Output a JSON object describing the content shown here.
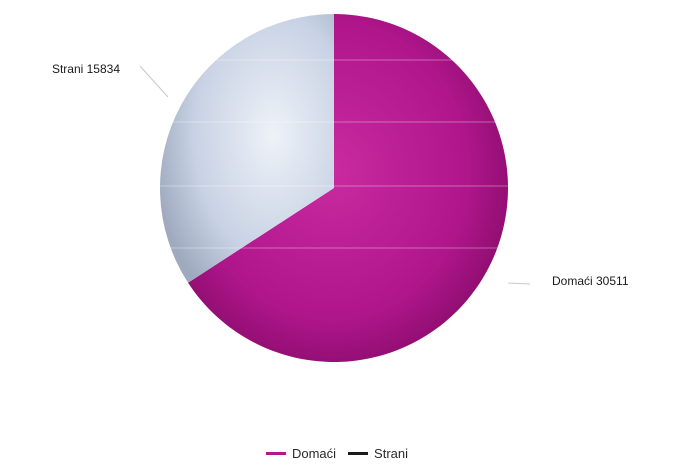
{
  "chart_data": {
    "type": "pie",
    "categories": [
      "Domaći",
      "Strani"
    ],
    "values": [
      30511,
      15834
    ],
    "data_labels": [
      "Domaći  30511",
      "Strani  15834"
    ],
    "legend": {
      "placement": "bottom-center",
      "entries": [
        "Domaći",
        "Strani"
      ]
    },
    "colors": [
      "#b5168f",
      "#c9d3e6"
    ],
    "legend_colors": [
      "#b5168f",
      "#1a1a1a"
    ],
    "start_angle_deg": 0,
    "direction": "clockwise"
  }
}
